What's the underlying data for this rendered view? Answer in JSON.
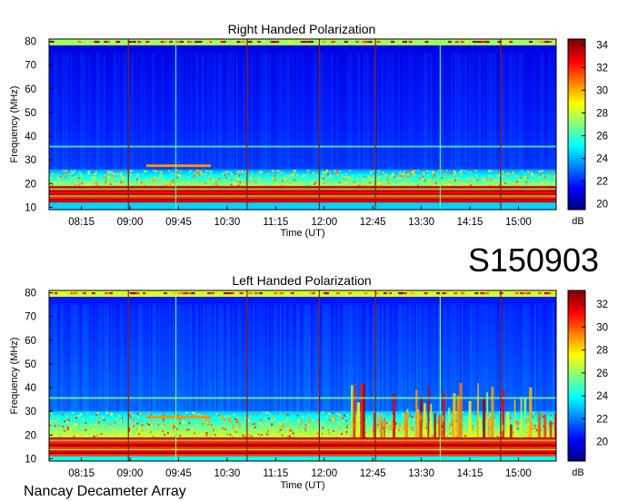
{
  "station_label": "S150903",
  "footer": "Nancay Decameter Array",
  "colormap": [
    "#00007f",
    "#0000ff",
    "#007fff",
    "#00ffff",
    "#7fff7f",
    "#ffff00",
    "#ff7f00",
    "#ff0000",
    "#7f0000"
  ],
  "chart_data": [
    {
      "type": "heatmap",
      "title": "Right Handed Polarization",
      "xlabel": "Time (UT)",
      "ylabel": "Frequency (MHz)",
      "x_ticks": [
        "08:15",
        "09:00",
        "09:45",
        "10:30",
        "11:15",
        "12:00",
        "12:45",
        "13:30",
        "14:15",
        "15:00"
      ],
      "y_ticks": [
        10,
        20,
        30,
        40,
        50,
        60,
        70,
        80
      ],
      "ylim": [
        9,
        81
      ],
      "colorbar": {
        "label": "dB",
        "ticks": [
          20,
          22,
          24,
          26,
          28,
          30,
          32,
          34
        ],
        "range": [
          19.5,
          34.5
        ]
      },
      "time_range": [
        "07:45",
        "15:35"
      ],
      "features": {
        "background_db": 21.5,
        "strong_band_mhz": [
          12,
          19
        ],
        "moderate_band_mhz": [
          19,
          26
        ],
        "top_band_mhz": 79.5,
        "line_freq_mhz": 36,
        "burst": {
          "time_start": "09:15",
          "time_end": "10:15",
          "freq_mhz": 27.5
        },
        "markers_dark": [
          "08:58",
          "10:48",
          "11:55",
          "12:47",
          "14:43"
        ],
        "markers_light": [
          "09:42",
          "13:47"
        ]
      }
    },
    {
      "type": "heatmap",
      "title": "Left Handed Polarization",
      "xlabel": "Time (UT)",
      "ylabel": "Frequency (MHz)",
      "x_ticks": [
        "08:15",
        "09:00",
        "09:45",
        "10:30",
        "11:15",
        "12:00",
        "12:45",
        "13:30",
        "14:15",
        "15:00"
      ],
      "y_ticks": [
        10,
        20,
        30,
        40,
        50,
        60,
        70,
        80
      ],
      "ylim": [
        9,
        81
      ],
      "colorbar": {
        "label": "dB",
        "ticks": [
          20,
          22,
          24,
          26,
          28,
          30,
          32
        ],
        "range": [
          18.3,
          33.2
        ]
      },
      "time_range": [
        "07:45",
        "15:35"
      ],
      "features": {
        "background_db": 21,
        "strong_band_mhz": [
          11,
          19
        ],
        "moderate_band_mhz": [
          19,
          30
        ],
        "top_band_mhz": 79.5,
        "line_freq_mhz": 36,
        "burst": {
          "time_start": "09:15",
          "time_end": "10:15",
          "freq_mhz": 27.5
        },
        "markers_dark": [
          "08:58",
          "10:48",
          "11:55",
          "12:47",
          "14:43"
        ],
        "markers_light": [
          "09:42",
          "13:47"
        ]
      }
    }
  ]
}
